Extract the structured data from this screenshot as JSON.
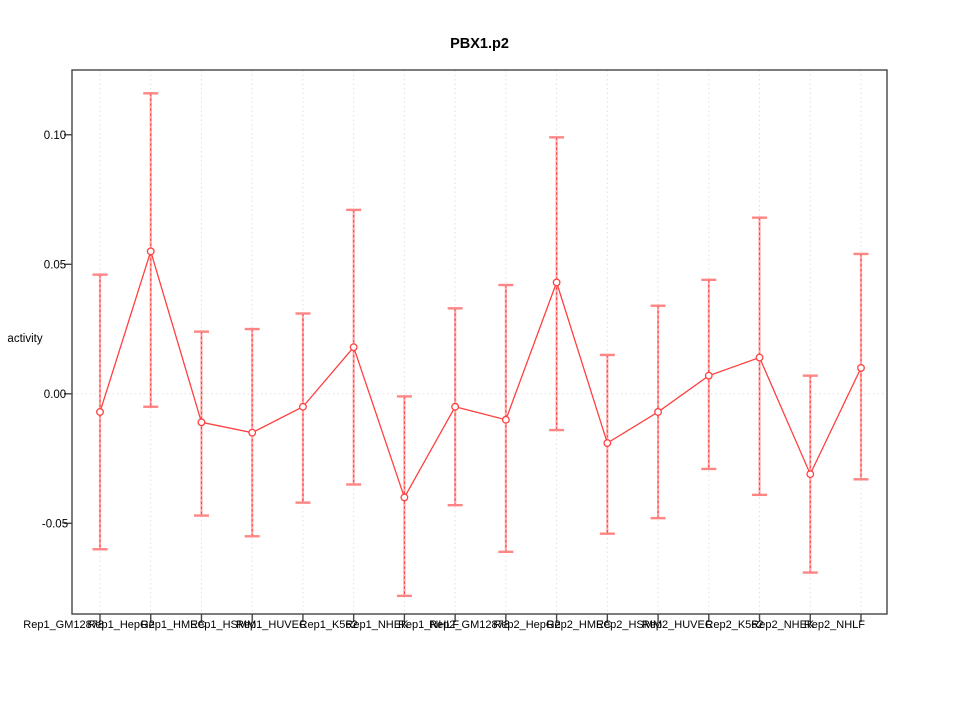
{
  "figure": {
    "title": "PBX1.p2",
    "ylabel": "activity"
  },
  "chart_data": {
    "type": "line",
    "title": "PBX1.p2",
    "xlabel": "",
    "ylabel": "activity",
    "categories": [
      "Rep1_GM12878",
      "Rep1_HepG2",
      "Rep1_HMEC",
      "Rep1_HSMM",
      "Rep1_HUVEC",
      "Rep1_K562",
      "Rep1_NHEK",
      "Rep1_NHLF",
      "Rep2_GM12878",
      "Rep2_HepG2",
      "Rep2_HMEC",
      "Rep2_HSMM",
      "Rep2_HUVEC",
      "Rep2_K562",
      "Rep2_NHEK",
      "Rep2_NHLF"
    ],
    "series": [
      {
        "name": "activity",
        "marker": "open-circle",
        "values": [
          -0.007,
          0.055,
          -0.011,
          -0.015,
          -0.005,
          0.018,
          -0.04,
          -0.005,
          -0.01,
          0.043,
          -0.019,
          -0.007,
          0.007,
          0.014,
          -0.031,
          0.01
        ],
        "upper": [
          0.046,
          0.116,
          0.024,
          0.025,
          0.031,
          0.071,
          -0.001,
          0.033,
          0.042,
          0.099,
          0.015,
          0.034,
          0.044,
          0.068,
          0.007,
          0.054
        ],
        "lower": [
          -0.06,
          -0.005,
          -0.047,
          -0.055,
          -0.042,
          -0.035,
          -0.078,
          -0.043,
          -0.061,
          -0.014,
          -0.054,
          -0.048,
          -0.029,
          -0.039,
          -0.069,
          -0.033
        ]
      }
    ],
    "ylim": [
      -0.085,
      0.125
    ],
    "yticks": {
      "values": [
        -0.05,
        0.0,
        0.05,
        0.1
      ],
      "labels": [
        "-0.05",
        "0.00",
        "0.05",
        "0.10"
      ]
    },
    "grid": {
      "vertical": "dotted-per-category",
      "horizontal_at_zero": true
    },
    "legend": "none",
    "tick_label_rotation_deg": 90,
    "colors": {
      "line": "#ff4040",
      "point_stroke": "#ff4040",
      "errorbar_stem": "#ffa8a8",
      "errorbar_dash": "#ff3b3b",
      "errorbar_cap": "#ff8585",
      "grid": "#e0e0e0",
      "frame": "#454545",
      "title": "#000000"
    }
  }
}
